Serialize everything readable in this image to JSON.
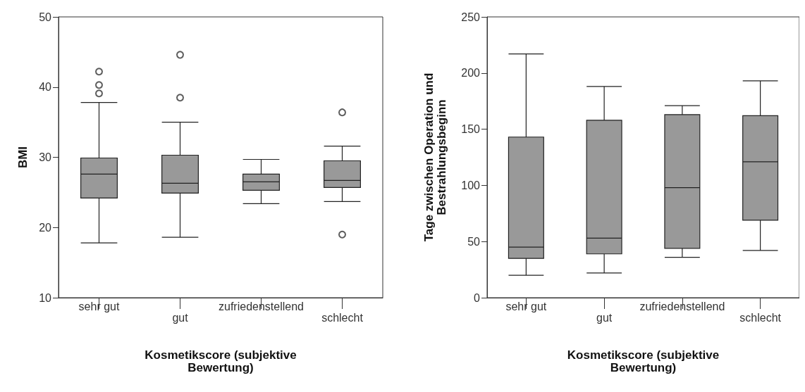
{
  "chart_data": [
    {
      "type": "box",
      "xlabel": "Kosmetikscore (subjektive Bewertung)",
      "ylabel": "BMI",
      "categories": [
        "sehr gut",
        "gut",
        "zufriedenstellend",
        "schlecht"
      ],
      "color": "#999999",
      "ylim": [
        10,
        50
      ],
      "yticks": [
        10,
        20,
        30,
        40,
        50
      ],
      "grid": false,
      "boxes": [
        {
          "low": 17.8,
          "q1": 24.2,
          "median": 27.6,
          "q3": 29.9,
          "high": 37.8,
          "outliers": [
            42.2,
            40.3,
            39.1
          ]
        },
        {
          "low": 18.6,
          "q1": 24.9,
          "median": 26.3,
          "q3": 30.3,
          "high": 35.0,
          "outliers": [
            44.6,
            38.5
          ]
        },
        {
          "low": 23.4,
          "q1": 25.3,
          "median": 26.5,
          "q3": 27.6,
          "high": 29.7
        },
        {
          "low": 23.7,
          "q1": 25.7,
          "median": 26.7,
          "q3": 29.5,
          "high": 31.6,
          "outliers": [
            36.4,
            19.0
          ]
        }
      ]
    },
    {
      "type": "box",
      "xlabel": "Kosmetikscore (subjektive Bewertung)",
      "ylabel": "Tage zwischen Operation und Bestrahlungsbeginn",
      "categories": [
        "sehr gut",
        "gut",
        "zufriedenstellend",
        "schlecht"
      ],
      "color": "#999999",
      "ylim": [
        0,
        250
      ],
      "yticks": [
        0,
        50,
        100,
        150,
        200,
        250
      ],
      "grid": false,
      "boxes": [
        {
          "low": 20,
          "q1": 35,
          "median": 45,
          "q3": 143,
          "high": 217
        },
        {
          "low": 22,
          "q1": 39,
          "median": 53,
          "q3": 158,
          "high": 188
        },
        {
          "low": 36,
          "q1": 44,
          "median": 98,
          "q3": 163,
          "high": 171
        },
        {
          "low": 42,
          "q1": 69,
          "median": 121,
          "q3": 162,
          "high": 193
        }
      ]
    }
  ]
}
